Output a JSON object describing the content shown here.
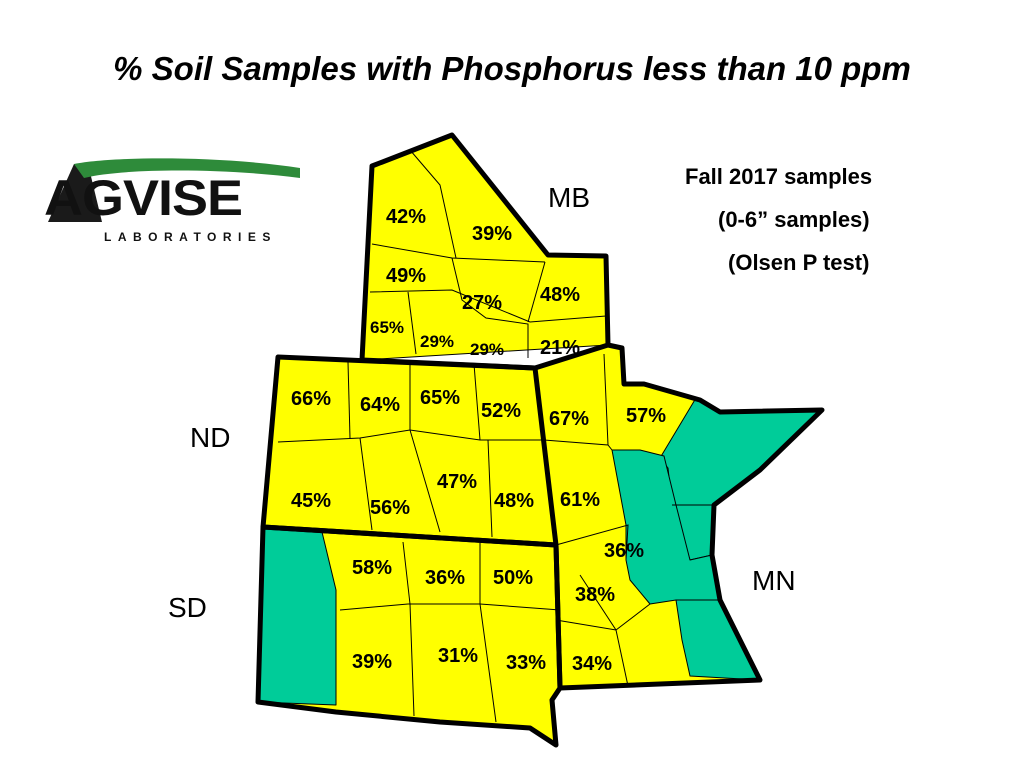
{
  "title": "% Soil Samples with Phosphorus less than 10 ppm",
  "logo": {
    "name": "AGVISE",
    "subtitle": "LABORATORIES"
  },
  "info": {
    "line1": "Fall 2017 samples",
    "line2": "(0-6” samples)",
    "line3": "(Olsen P test)"
  },
  "states": {
    "mb": "MB",
    "nd": "ND",
    "sd": "SD",
    "mn": "MN"
  },
  "colors": {
    "region_fill": "#ffff00",
    "no_data_fill": "#00cc99",
    "border": "#000000"
  },
  "regions": {
    "mb": [
      "42%",
      "39%",
      "49%",
      "27%",
      "48%",
      "65%",
      "29%",
      "29%",
      "21%"
    ],
    "nd": [
      "66%",
      "64%",
      "65%",
      "52%",
      "45%",
      "56%",
      "47%",
      "48%"
    ],
    "mn": [
      "67%",
      "57%",
      "61%",
      "36%",
      "38%",
      "34%"
    ],
    "sd": [
      "58%",
      "36%",
      "50%",
      "39%",
      "31%",
      "33%"
    ]
  }
}
